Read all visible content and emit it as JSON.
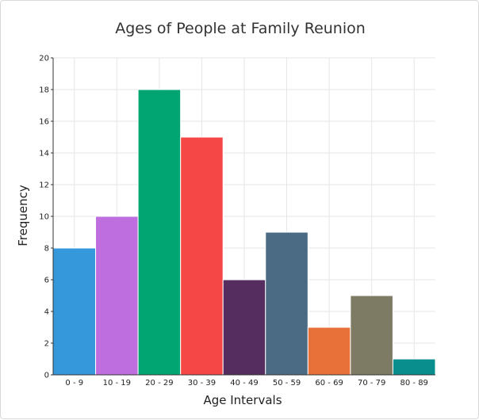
{
  "chart_data": {
    "type": "bar",
    "title": "Ages of People at Family Reunion",
    "xlabel": "Age Intervals",
    "ylabel": "Frequency",
    "categories": [
      "0 - 9",
      "10 - 19",
      "20 - 29",
      "30 - 39",
      "40 - 49",
      "50 - 59",
      "60 - 69",
      "70 - 79",
      "80 - 89"
    ],
    "values": [
      8,
      10,
      18,
      15,
      6,
      9,
      3,
      5,
      1
    ],
    "colors": [
      "#3498db",
      "#bf6ee0",
      "#00a572",
      "#f64747",
      "#552e5f",
      "#4b6b85",
      "#e8713a",
      "#7e7b65",
      "#0a8d8d"
    ],
    "ylim": [
      0,
      20
    ],
    "yticks": [
      0,
      2,
      4,
      6,
      8,
      10,
      12,
      14,
      16,
      18,
      20
    ],
    "grid": true,
    "legend": "none"
  }
}
